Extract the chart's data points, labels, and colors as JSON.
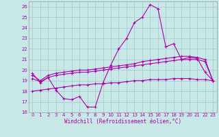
{
  "xlabel": "Windchill (Refroidissement éolien,°C)",
  "xlim": [
    -0.5,
    23.5
  ],
  "ylim": [
    16,
    26.5
  ],
  "yticks": [
    16,
    17,
    18,
    19,
    20,
    21,
    22,
    23,
    24,
    25,
    26
  ],
  "xticks": [
    0,
    1,
    2,
    3,
    4,
    5,
    6,
    7,
    8,
    9,
    10,
    11,
    12,
    13,
    14,
    15,
    16,
    17,
    18,
    19,
    20,
    21,
    22,
    23
  ],
  "bg_color": "#c8e8e8",
  "grid_color": "#aacccc",
  "line_color": "#aa00aa",
  "line1_x": [
    0,
    1,
    2,
    3,
    4,
    5,
    6,
    7,
    8,
    9,
    10,
    11,
    12,
    13,
    14,
    15,
    16,
    17,
    18,
    19,
    20,
    21,
    22,
    23
  ],
  "line1_y": [
    19.7,
    18.8,
    19.3,
    18.1,
    17.3,
    17.2,
    17.5,
    16.5,
    16.5,
    18.8,
    20.5,
    22.0,
    23.0,
    24.5,
    25.0,
    26.2,
    25.8,
    22.2,
    22.5,
    21.0,
    21.2,
    21.1,
    19.8,
    19.0
  ],
  "line2_x": [
    0,
    1,
    2,
    3,
    4,
    5,
    6,
    7,
    8,
    9,
    10,
    11,
    12,
    13,
    14,
    15,
    16,
    17,
    18,
    19,
    20,
    21,
    22,
    23
  ],
  "line2_y": [
    19.5,
    19.0,
    19.5,
    19.7,
    19.8,
    19.9,
    20.0,
    20.0,
    20.1,
    20.2,
    20.3,
    20.4,
    20.5,
    20.6,
    20.8,
    20.9,
    21.0,
    21.1,
    21.2,
    21.3,
    21.3,
    21.2,
    21.0,
    19.0
  ],
  "line3_x": [
    0,
    1,
    2,
    3,
    4,
    5,
    6,
    7,
    8,
    9,
    10,
    11,
    12,
    13,
    14,
    15,
    16,
    17,
    18,
    19,
    20,
    21,
    22,
    23
  ],
  "line3_y": [
    19.2,
    18.9,
    19.3,
    19.5,
    19.6,
    19.7,
    19.8,
    19.8,
    19.9,
    20.0,
    20.1,
    20.2,
    20.3,
    20.4,
    20.5,
    20.6,
    20.7,
    20.8,
    20.9,
    21.0,
    21.0,
    21.0,
    20.8,
    19.0
  ],
  "line4_x": [
    0,
    1,
    2,
    3,
    4,
    5,
    6,
    7,
    8,
    9,
    10,
    11,
    12,
    13,
    14,
    15,
    16,
    17,
    18,
    19,
    20,
    21,
    22,
    23
  ],
  "line4_y": [
    18.0,
    18.1,
    18.2,
    18.3,
    18.4,
    18.5,
    18.6,
    18.6,
    18.7,
    18.7,
    18.8,
    18.8,
    18.9,
    19.0,
    19.0,
    19.1,
    19.1,
    19.1,
    19.2,
    19.2,
    19.2,
    19.1,
    19.1,
    19.0
  ]
}
